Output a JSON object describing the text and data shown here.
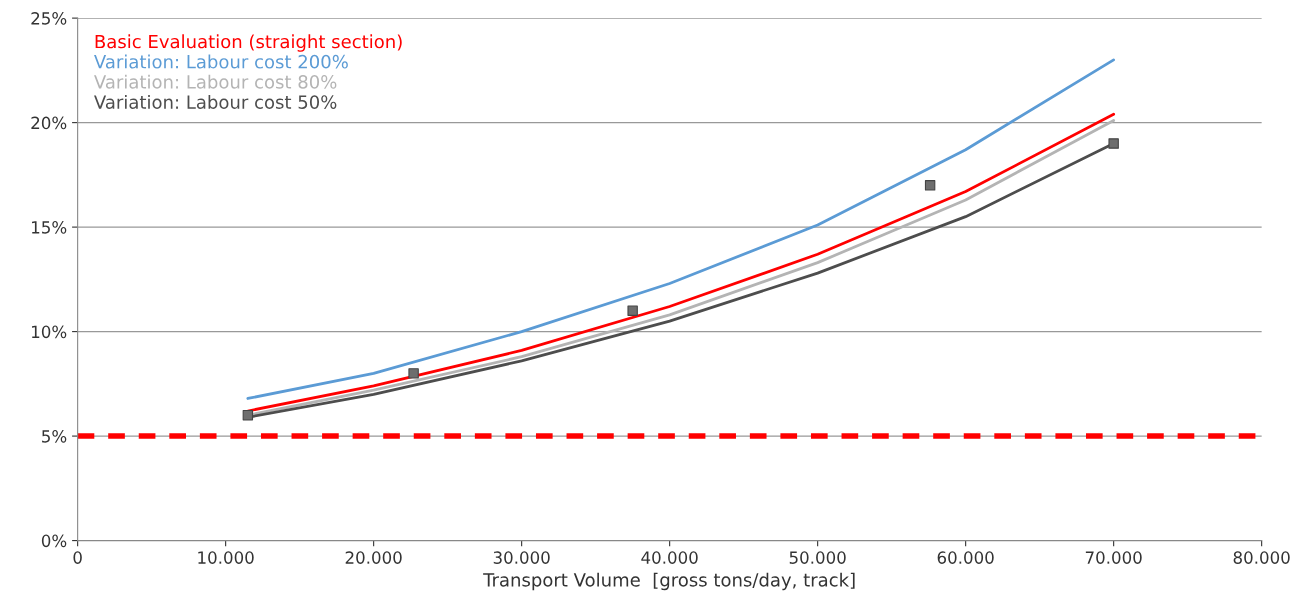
{
  "chart_data": {
    "type": "line",
    "xlabel": "Transport Volume  [gross tons/day, track]",
    "xlim": [
      0,
      80000
    ],
    "xticks": [
      0,
      {
        "value": 10000,
        "label": "10.000"
      },
      {
        "value": 20000,
        "label": "20.000"
      },
      {
        "value": 30000,
        "label": "30.000"
      },
      {
        "value": 40000,
        "label": "40.000"
      },
      {
        "value": 50000,
        "label": "50.000"
      },
      {
        "value": 60000,
        "label": "60.000"
      },
      {
        "value": 70000,
        "label": "70.000"
      },
      {
        "value": 80000,
        "label": "80.000"
      }
    ],
    "ylim": [
      0,
      25
    ],
    "yticks": [
      {
        "value": 0,
        "label": "0%"
      },
      {
        "value": 5,
        "label": "5%"
      },
      {
        "value": 10,
        "label": "10%"
      },
      {
        "value": 15,
        "label": "15%"
      },
      {
        "value": 20,
        "label": "20%"
      },
      {
        "value": 25,
        "label": "25%"
      }
    ],
    "grid": "y",
    "legend": "top left",
    "marker": "none",
    "line_style": "solid",
    "series": [
      {
        "name": "Basic Evaluation (straight section)",
        "color": "#ff0000",
        "x": [
          11500,
          20000,
          30000,
          40000,
          50000,
          60000,
          70000
        ],
        "values": [
          6.2,
          7.4,
          9.1,
          11.2,
          13.7,
          16.7,
          20.4
        ]
      },
      {
        "name": "Variation: Labour cost 200%",
        "color": "#5b9bd5",
        "x": [
          11500,
          20000,
          30000,
          40000,
          50000,
          60000,
          70000
        ],
        "values": [
          6.8,
          8.0,
          10.0,
          12.3,
          15.1,
          18.7,
          23.0
        ]
      },
      {
        "name": "Variation: Labour cost 80%",
        "color": "#b4b4b4",
        "x": [
          11500,
          20000,
          30000,
          40000,
          50000,
          60000,
          70000
        ],
        "values": [
          6.0,
          7.2,
          8.8,
          10.8,
          13.3,
          16.3,
          20.1
        ]
      },
      {
        "name": "Variation: Labour cost 50%",
        "color": "#4d4d4d",
        "x": [
          11500,
          20000,
          30000,
          40000,
          50000,
          60000,
          70000
        ],
        "values": [
          5.9,
          7.0,
          8.6,
          10.5,
          12.8,
          15.5,
          19.0
        ]
      },
      {
        "type": "scatter",
        "marker": "square",
        "color": "#6e6e6e",
        "x": [
          11500,
          22700,
          37500,
          57600,
          70000
        ],
        "values": [
          6,
          8,
          11,
          17,
          19
        ]
      }
    ],
    "ref_lines": [
      {
        "axis": "y",
        "value": 5,
        "color": "#ff0000",
        "line_style": "dashed"
      }
    ]
  }
}
